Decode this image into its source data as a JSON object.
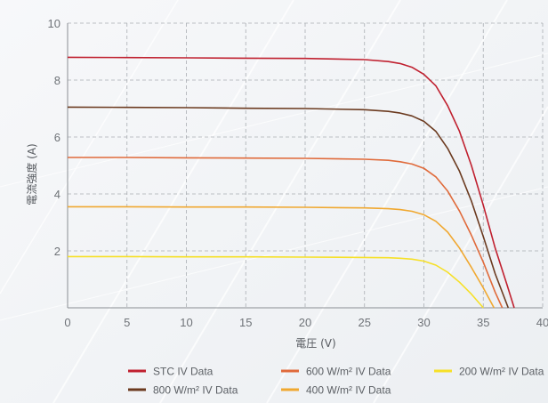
{
  "chart_data": {
    "type": "line",
    "xlabel": "電圧 (V)",
    "ylabel": "電流強度 (A)",
    "xlim": [
      0,
      40
    ],
    "ylim": [
      0,
      10
    ],
    "x_ticks": [
      "0",
      "5",
      "10",
      "15",
      "20",
      "25",
      "30",
      "35",
      "40"
    ],
    "y_ticks": [
      "2",
      "4",
      "6",
      "8",
      "10"
    ],
    "grid": true,
    "legend_position": "bottom",
    "series": [
      {
        "name": "STC IV Data",
        "color": "#c0202f",
        "x": [
          0,
          5,
          10,
          15,
          20,
          25,
          27,
          28,
          29,
          30,
          31,
          32,
          33,
          34,
          35,
          36,
          37,
          37.6
        ],
        "y": [
          8.8,
          8.79,
          8.78,
          8.77,
          8.76,
          8.72,
          8.65,
          8.58,
          8.45,
          8.2,
          7.8,
          7.1,
          6.2,
          5.0,
          3.6,
          2.1,
          0.8,
          0
        ]
      },
      {
        "name": "800 W/m² IV Data",
        "color": "#6b3a1f",
        "x": [
          0,
          5,
          10,
          15,
          20,
          25,
          27,
          28,
          29,
          30,
          31,
          32,
          33,
          34,
          35,
          36,
          37.1
        ],
        "y": [
          7.05,
          7.04,
          7.03,
          7.01,
          7.0,
          6.96,
          6.9,
          6.84,
          6.74,
          6.55,
          6.2,
          5.6,
          4.8,
          3.75,
          2.5,
          1.2,
          0
        ]
      },
      {
        "name": "600 W/m² IV Data",
        "color": "#e06a3a",
        "x": [
          0,
          5,
          10,
          15,
          20,
          25,
          27,
          28,
          29,
          30,
          31,
          32,
          33,
          34,
          35,
          36,
          36.6
        ],
        "y": [
          5.28,
          5.28,
          5.27,
          5.26,
          5.25,
          5.22,
          5.18,
          5.13,
          5.05,
          4.9,
          4.6,
          4.1,
          3.4,
          2.55,
          1.6,
          0.55,
          0
        ]
      },
      {
        "name": "400 W/m² IV Data",
        "color": "#f0a830",
        "x": [
          0,
          5,
          10,
          15,
          20,
          25,
          27,
          28,
          29,
          30,
          31,
          32,
          33,
          34,
          35,
          35.9
        ],
        "y": [
          3.55,
          3.55,
          3.54,
          3.54,
          3.53,
          3.51,
          3.48,
          3.45,
          3.39,
          3.27,
          3.04,
          2.66,
          2.1,
          1.42,
          0.7,
          0
        ]
      },
      {
        "name": "200 W/m² IV Data",
        "color": "#f6e027",
        "x": [
          0,
          5,
          10,
          15,
          20,
          25,
          27,
          28,
          29,
          30,
          31,
          32,
          33,
          34,
          35
        ],
        "y": [
          1.8,
          1.8,
          1.79,
          1.79,
          1.78,
          1.77,
          1.76,
          1.74,
          1.71,
          1.64,
          1.5,
          1.25,
          0.9,
          0.48,
          0
        ]
      }
    ]
  }
}
